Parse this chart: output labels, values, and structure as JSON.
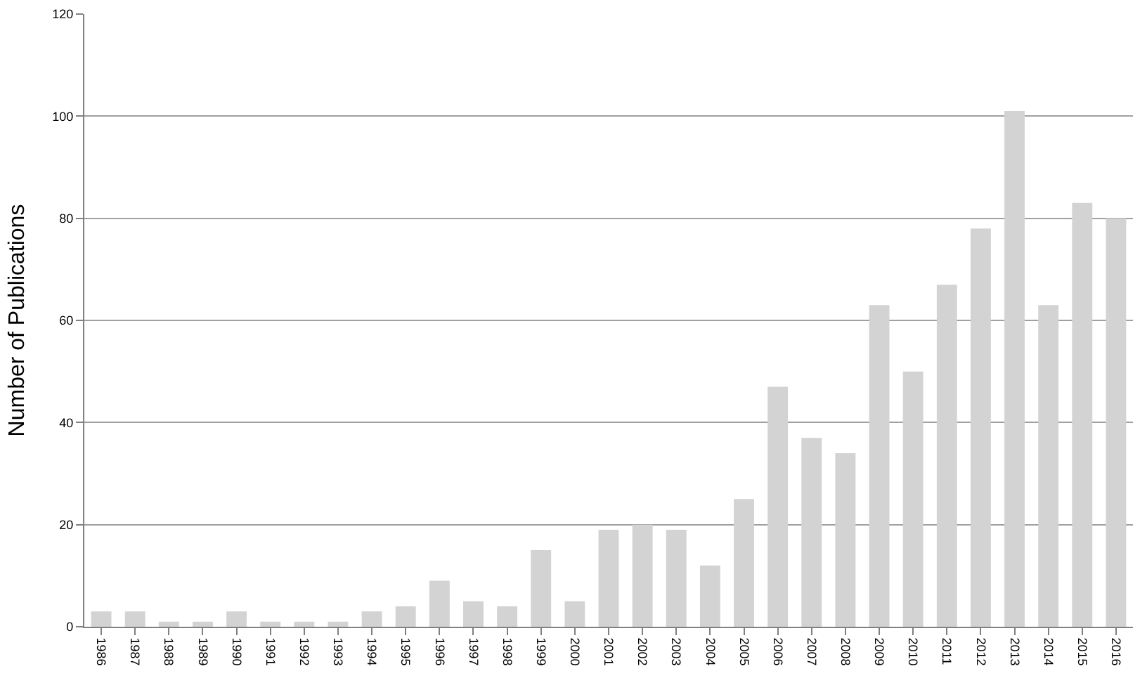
{
  "chart_data": {
    "type": "bar",
    "ylabel": "Number of Publications",
    "categories": [
      "1986",
      "1987",
      "1988",
      "1989",
      "1990",
      "1991",
      "1992",
      "1993",
      "1994",
      "1995",
      "1996",
      "1997",
      "1998",
      "1999",
      "2000",
      "2001",
      "2002",
      "2003",
      "2004",
      "2005",
      "2006",
      "2007",
      "2008",
      "2009",
      "2010",
      "2011",
      "2012",
      "2013",
      "2014",
      "2015",
      "2016"
    ],
    "values": [
      3,
      3,
      1,
      1,
      3,
      1,
      1,
      1,
      3,
      4,
      9,
      5,
      4,
      15,
      5,
      19,
      20,
      19,
      12,
      25,
      47,
      37,
      34,
      63,
      50,
      67,
      78,
      101,
      63,
      83,
      80
    ],
    "color": "#d3d3d3",
    "ylim": [
      0,
      120
    ],
    "yticks": [
      0,
      20,
      40,
      60,
      80,
      100,
      120
    ],
    "grid": "y",
    "legend": false
  }
}
